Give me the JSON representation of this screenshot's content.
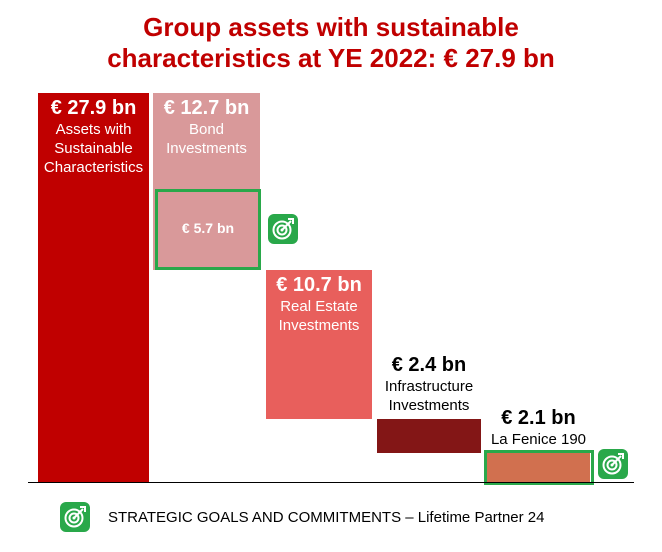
{
  "title": {
    "line1": "Group assets with sustainable",
    "line2": "characteristics at YE 2022: € 27.9 bn"
  },
  "colors": {
    "title": "#c00000",
    "total": "#c00000",
    "bond": "#d9999a",
    "real_estate": "#e85f5c",
    "infrastructure": "#831616",
    "la_fenice": "#d1704f",
    "highlight": "#29a84a"
  },
  "chart_data": {
    "type": "bar",
    "subtype": "waterfall",
    "unit": "€ bn",
    "categories": [
      "Assets with Sustainable Characteristics",
      "Bond Investments",
      "Real Estate Investments",
      "Infrastructure Investments",
      "La Fenice 190"
    ],
    "values": [
      27.9,
      12.7,
      10.7,
      2.4,
      2.1
    ],
    "highlight": {
      "category": "Bond Investments",
      "value": 5.7
    }
  },
  "labels": [
    {
      "value": "€ 27.9 bn",
      "lines": [
        "Assets with",
        "Sustainable",
        "Characteristics"
      ]
    },
    {
      "value": "€ 12.7 bn",
      "lines": [
        "Bond",
        "Investments"
      ]
    },
    {
      "value": "€ 10.7 bn",
      "lines": [
        "Real Estate",
        "Investments"
      ]
    },
    {
      "value": "€ 2.4 bn",
      "lines": [
        "Infrastructure",
        "Investments"
      ]
    },
    {
      "value": "€ 2.1 bn",
      "lines": [
        "La Fenice 190"
      ]
    }
  ],
  "highlight_label": "€ 5.7 bn",
  "icons": [
    "target-badge-icon"
  ],
  "footer": "STRATEGIC GOALS AND COMMITMENTS – Lifetime Partner 24"
}
